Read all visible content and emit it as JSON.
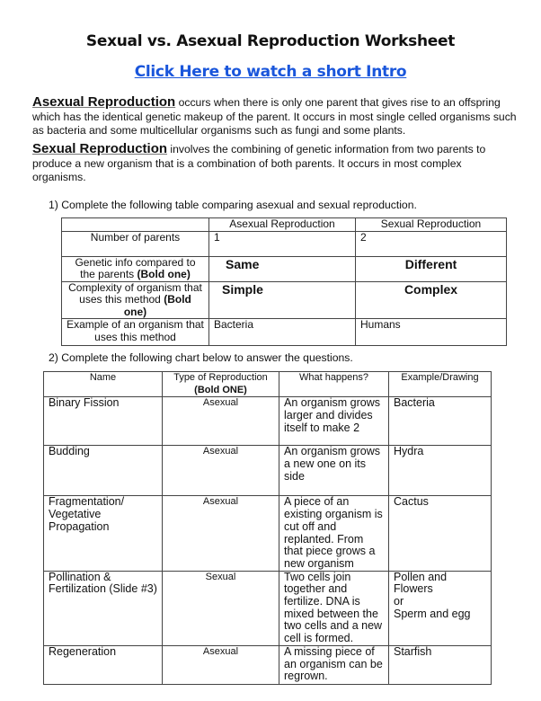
{
  "title": "Sexual vs. Asexual Reproduction Worksheet",
  "intro_link": "Click Here to watch a short Intro",
  "definitions": [
    {
      "term": "Asexual Reproduction",
      "text": " occurs when there is only one parent that gives rise to an offspring which has the identical genetic makeup of the parent.  It occurs in most single celled organisms such as bacteria and some multicellular organisms such as fungi and some plants."
    },
    {
      "term": "Sexual Reproduction",
      "text": " involves the combining of genetic information from two parents to produce a new organism that is a combination of both parents.  It occurs in most complex organisms."
    }
  ],
  "question1": {
    "label": "1)   Complete the following table comparing asexual and sexual reproduction.",
    "headers": [
      "",
      "Asexual Reproduction",
      "Sexual Reproduction"
    ],
    "rows": [
      {
        "label": "Number of parents",
        "label_bold": "",
        "asexual": "1",
        "sexual": "2"
      },
      {
        "label": "Genetic info compared to the parents ",
        "label_bold": "(Bold one)",
        "asexual": "Same",
        "sexual": "Different"
      },
      {
        "label": "Complexity of organism that uses this method ",
        "label_bold": "(Bold one)",
        "asexual": "Simple",
        "sexual": "Complex"
      },
      {
        "label": "Example of an organism that uses this method",
        "label_bold": "",
        "asexual": "Bacteria",
        "sexual": "Humans"
      }
    ]
  },
  "question2": {
    "label": "2)  Complete the following chart below to answer the questions.",
    "headers": {
      "name": "Name",
      "type": "Type of Reproduction",
      "type_note": "(Bold ONE)",
      "what": "What happens?",
      "example": "Example/Drawing"
    },
    "rows": [
      {
        "name": "Binary Fission",
        "type": "Asexual",
        "what": "An organism grows larger and divides itself to make 2",
        "example": "Bacteria"
      },
      {
        "name": "Budding",
        "type": "Asexual",
        "what": "An organism grows a new one on its side",
        "example": "Hydra"
      },
      {
        "name": "Fragmentation/ Vegetative Propagation",
        "type": "Asexual",
        "what": "A piece of an existing organism is cut off and replanted. From that piece grows a new organism",
        "example": "Cactus"
      },
      {
        "name": "Pollination & Fertilization (Slide #3)",
        "type": "Sexual",
        "what": "Two cells join together and fertilize. DNA is mixed between the two cells and a new cell is formed.",
        "example": "Pollen and Flowers\nor\nSperm and egg"
      },
      {
        "name": "Regeneration",
        "type": "Asexual",
        "what": "A missing piece of an organism can be regrown.",
        "example": "Starfish"
      }
    ]
  }
}
